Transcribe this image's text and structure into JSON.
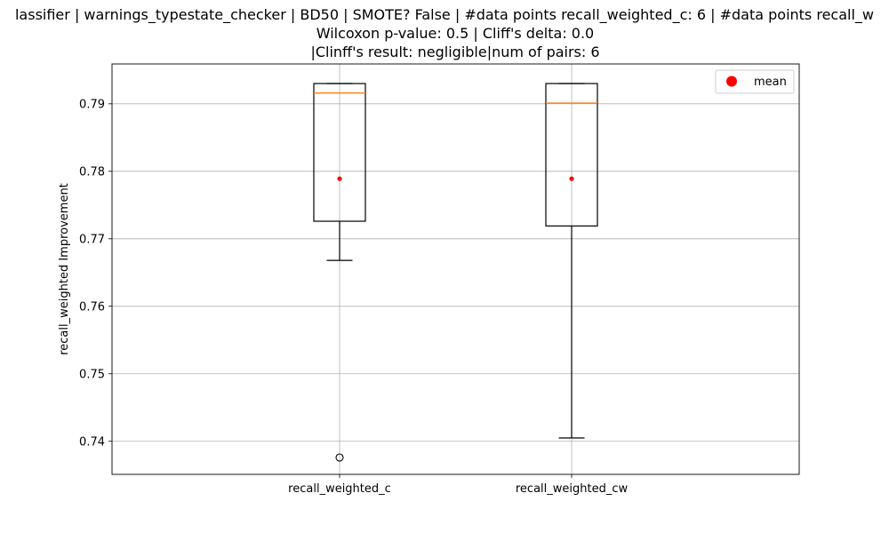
{
  "chart_data": {
    "type": "box",
    "title_lines": [
      "lassifier | warnings_typestate_checker | BD50 | SMOTE? False | #data points recall_weighted_c: 6 | #data points recall_w",
      "Wilcoxon p-value: 0.5 | Cliff's delta: 0.0",
      "|Clinff's result: negligible|num of pairs: 6"
    ],
    "xlabel": "",
    "ylabel": "recall_weighted Improvement",
    "ylim": [
      0.7351,
      0.7959
    ],
    "yticks": [
      0.74,
      0.75,
      0.76,
      0.77,
      0.78,
      0.79
    ],
    "ytick_labels": [
      "0.74",
      "0.75",
      "0.76",
      "0.77",
      "0.78",
      "0.79"
    ],
    "grid": true,
    "legend": {
      "placement": "top-right",
      "entries": [
        "mean"
      ]
    },
    "colors": {
      "box": "#000000",
      "median": "#ff7f0e",
      "mean": "#ff0000",
      "grid": "#b0b0b0"
    },
    "boxes": [
      {
        "label": "recall_weighted_c",
        "whisker_low": 0.7668,
        "q1": 0.7726,
        "median": 0.7916,
        "q3": 0.793,
        "whisker_high": 0.793,
        "mean": 0.7789,
        "outliers": [
          0.7376
        ]
      },
      {
        "label": "recall_weighted_cw",
        "whisker_low": 0.7405,
        "q1": 0.7719,
        "median": 0.7901,
        "q3": 0.793,
        "whisker_high": 0.793,
        "mean": 0.7789,
        "outliers": []
      }
    ]
  }
}
